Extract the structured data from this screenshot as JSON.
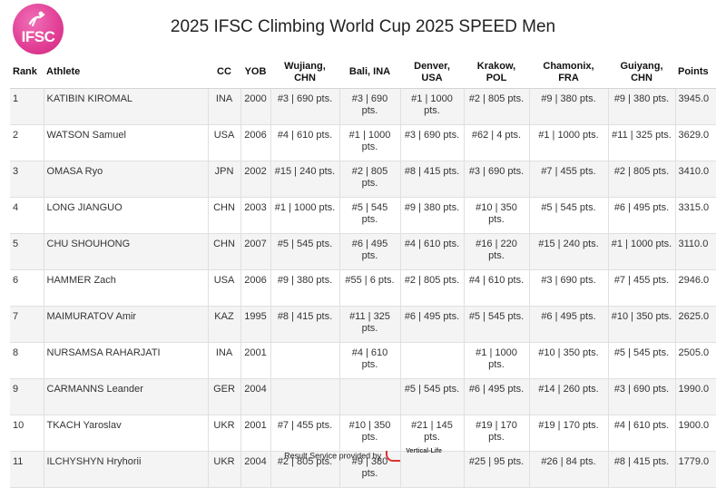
{
  "header": {
    "logo_text": "IFSC",
    "title": "2025 IFSC Climbing World Cup 2025 SPEED Men"
  },
  "columns": {
    "rank": "Rank",
    "athlete": "Athlete",
    "cc": "CC",
    "yob": "YOB",
    "events": [
      "Wujiang, CHN",
      "Bali, INA",
      "Denver, USA",
      "Krakow, POL",
      "Chamonix, FRA",
      "Guiyang, CHN"
    ],
    "points": "Points"
  },
  "rows": [
    {
      "rank": "1",
      "athlete": "KATIBIN KIROMAL",
      "cc": "INA",
      "yob": "2000",
      "results": [
        "#3 | 690 pts.",
        "#3 | 690 pts.",
        "#1 | 1000 pts.",
        "#2 | 805 pts.",
        "#9 | 380 pts.",
        "#9 | 380 pts."
      ],
      "points": "3945.0"
    },
    {
      "rank": "2",
      "athlete": "WATSON Samuel",
      "cc": "USA",
      "yob": "2006",
      "results": [
        "#4 | 610 pts.",
        "#1 | 1000 pts.",
        "#3 | 690 pts.",
        "#62 | 4 pts.",
        "#1 | 1000 pts.",
        "#11 | 325 pts."
      ],
      "points": "3629.0"
    },
    {
      "rank": "3",
      "athlete": "OMASA Ryo",
      "cc": "JPN",
      "yob": "2002",
      "results": [
        "#15 | 240 pts.",
        "#2 | 805 pts.",
        "#8 | 415 pts.",
        "#3 | 690 pts.",
        "#7 | 455 pts.",
        "#2 | 805 pts."
      ],
      "points": "3410.0"
    },
    {
      "rank": "4",
      "athlete": "LONG JIANGUO",
      "cc": "CHN",
      "yob": "2003",
      "results": [
        "#1 | 1000 pts.",
        "#5 | 545 pts.",
        "#9 | 380 pts.",
        "#10 | 350 pts.",
        "#5 | 545 pts.",
        "#6 | 495 pts."
      ],
      "points": "3315.0"
    },
    {
      "rank": "5",
      "athlete": "CHU SHOUHONG",
      "cc": "CHN",
      "yob": "2007",
      "results": [
        "#5 | 545 pts.",
        "#6 | 495 pts.",
        "#4 | 610 pts.",
        "#16 | 220 pts.",
        "#15 | 240 pts.",
        "#1 | 1000 pts."
      ],
      "points": "3110.0"
    },
    {
      "rank": "6",
      "athlete": "HAMMER Zach",
      "cc": "USA",
      "yob": "2006",
      "results": [
        "#9 | 380 pts.",
        "#55 | 6 pts.",
        "#2 | 805 pts.",
        "#4 | 610 pts.",
        "#3 | 690 pts.",
        "#7 | 455 pts."
      ],
      "points": "2946.0"
    },
    {
      "rank": "7",
      "athlete": "MAIMURATOV Amir",
      "cc": "KAZ",
      "yob": "1995",
      "results": [
        "#8 | 415 pts.",
        "#11 | 325 pts.",
        "#6 | 495 pts.",
        "#5 | 545 pts.",
        "#6 | 495 pts.",
        "#10 | 350 pts."
      ],
      "points": "2625.0"
    },
    {
      "rank": "8",
      "athlete": "NURSAMSA RAHARJATI",
      "cc": "INA",
      "yob": "2001",
      "results": [
        "",
        "#4 | 610 pts.",
        "",
        "#1 | 1000 pts.",
        "#10 | 350 pts.",
        "#5 | 545 pts."
      ],
      "points": "2505.0"
    },
    {
      "rank": "9",
      "athlete": "CARMANNS Leander",
      "cc": "GER",
      "yob": "2004",
      "results": [
        "",
        "",
        "#5 | 545 pts.",
        "#6 | 495 pts.",
        "#14 | 260 pts.",
        "#3 | 690 pts."
      ],
      "points": "1990.0"
    },
    {
      "rank": "10",
      "athlete": "TKACH Yaroslav",
      "cc": "UKR",
      "yob": "2001",
      "results": [
        "#7 | 455 pts.",
        "#10 | 350 pts.",
        "#21 | 145 pts.",
        "#19 | 170 pts.",
        "#19 | 170 pts.",
        "#4 | 610 pts."
      ],
      "points": "1900.0"
    },
    {
      "rank": "11",
      "athlete": "ILCHYSHYN Hryhorii",
      "cc": "UKR",
      "yob": "2004",
      "results": [
        "#2 | 805 pts.",
        "#9 | 380 pts.",
        "",
        "#25 | 95 pts.",
        "#26 | 84 pts.",
        "#8 | 415 pts."
      ],
      "points": "1779.0"
    }
  ],
  "footer": {
    "text": "Result Service provided by",
    "brand": "Vertical-Life"
  }
}
